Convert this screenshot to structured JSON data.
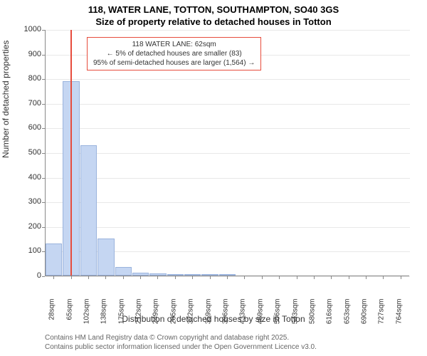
{
  "chart": {
    "type": "histogram",
    "title_line1": "118, WATER LANE, TOTTON, SOUTHAMPTON, SO40 3GS",
    "title_line2": "Size of property relative to detached houses in Totton",
    "ylabel": "Number of detached properties",
    "xlabel": "Distribution of detached houses by size in Totton",
    "ylim": [
      0,
      1000
    ],
    "ytick_step": 100,
    "yticks": [
      0,
      100,
      200,
      300,
      400,
      500,
      600,
      700,
      800,
      900,
      1000
    ],
    "xticks": [
      "28sqm",
      "65sqm",
      "102sqm",
      "138sqm",
      "175sqm",
      "212sqm",
      "249sqm",
      "285sqm",
      "322sqm",
      "359sqm",
      "396sqm",
      "433sqm",
      "469sqm",
      "506sqm",
      "543sqm",
      "580sqm",
      "616sqm",
      "653sqm",
      "690sqm",
      "727sqm",
      "764sqm"
    ],
    "bars": [
      {
        "x_index": 0,
        "value": 130
      },
      {
        "x_index": 1,
        "value": 790
      },
      {
        "x_index": 2,
        "value": 530
      },
      {
        "x_index": 3,
        "value": 150
      },
      {
        "x_index": 4,
        "value": 35
      },
      {
        "x_index": 5,
        "value": 12
      },
      {
        "x_index": 6,
        "value": 8
      },
      {
        "x_index": 7,
        "value": 3
      },
      {
        "x_index": 8,
        "value": 2
      },
      {
        "x_index": 9,
        "value": 1
      },
      {
        "x_index": 10,
        "value": 1
      }
    ],
    "bar_color": "#c5d6f2",
    "bar_border_color": "#9ab3dd",
    "marker_position_sqm": 62,
    "marker_color": "#e74c3c",
    "background_color": "#ffffff",
    "grid_color": "#e8e8e8",
    "axis_color": "#888888",
    "annotation": {
      "line1": "118 WATER LANE: 62sqm",
      "line2": "← 5% of detached houses are smaller (83)",
      "line3": "95% of semi-detached houses are larger (1,564) →",
      "border_color": "#e74c3c"
    },
    "footer_line1": "Contains HM Land Registry data © Crown copyright and database right 2025.",
    "footer_line2": "Contains public sector information licensed under the Open Government Licence v3.0."
  }
}
